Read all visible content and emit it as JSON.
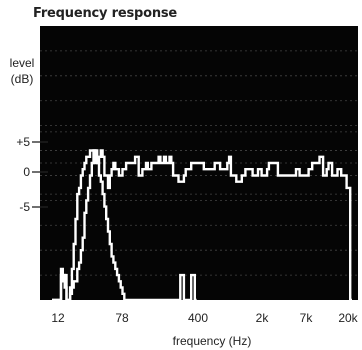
{
  "chart_data": {
    "type": "line",
    "title": "Frequency response",
    "ylabel_lines": [
      "level",
      "(dB)"
    ],
    "xlabel": "frequency (Hz)",
    "x_tick_labels": [
      "12",
      "78",
      "400",
      "2k",
      "7k",
      "20k"
    ],
    "y_tick_labels": [
      "+5",
      "0",
      "-5"
    ],
    "y_tick_values": [
      5,
      0,
      -5
    ],
    "ylim": [
      -22,
      22
    ],
    "xlim": [
      0,
      27
    ],
    "grid": true,
    "background": "#050505",
    "line_color": "#ffffff",
    "series": [
      {
        "values": [
          -22,
          -22,
          -22,
          -22,
          -22,
          -17,
          -19,
          -18,
          -22,
          -22,
          -20,
          -17,
          -13,
          -9,
          -5,
          -4,
          -2,
          -1,
          0,
          1,
          1,
          2,
          2,
          0,
          2,
          0,
          1,
          2,
          1,
          -2,
          -2,
          -4,
          -2,
          -1,
          0,
          -1,
          -1,
          -2,
          -2,
          -1,
          -1,
          0,
          0,
          0,
          0,
          0,
          1,
          1,
          -2,
          -2,
          -1,
          -1,
          0,
          -1,
          -1,
          0,
          0,
          0,
          0,
          1,
          0,
          0,
          1,
          0,
          0,
          1,
          0,
          -2,
          -2,
          -2,
          -3,
          -3,
          -3,
          -2,
          -1,
          -1,
          -1,
          0,
          0,
          0,
          0,
          0,
          0,
          0,
          -1,
          -1,
          -1,
          -1,
          -1,
          -1,
          0,
          0,
          0,
          -1,
          -1,
          -1,
          -1,
          0,
          1,
          -2,
          -2,
          -2,
          -3,
          -3,
          -3,
          -2,
          -2,
          -1,
          -1,
          -1,
          -1,
          -2,
          -2,
          -2,
          -1,
          -1,
          -2,
          -2,
          -2,
          -1,
          0,
          0,
          0,
          0,
          0,
          -2,
          -2,
          -2,
          -2,
          -2,
          -2,
          -2,
          -2,
          -2,
          -2,
          -1,
          -1,
          -2,
          -2,
          -2,
          -2,
          -2,
          -1,
          -1,
          0,
          0,
          0,
          0,
          1,
          1,
          -2,
          -2,
          -1,
          0,
          0,
          -2,
          -2,
          -2,
          -1,
          -1,
          -2,
          -2,
          -2,
          -4,
          -4,
          -22
        ]
      },
      {
        "values": [
          -22,
          -22,
          -22,
          -22,
          -22,
          -18,
          -18,
          -20,
          -22,
          -22,
          -21,
          -20,
          -19,
          -19,
          -17,
          -16,
          -14,
          -12,
          -8,
          -6,
          -4,
          -2,
          0,
          2,
          1,
          0,
          -2,
          -3,
          -5,
          -7,
          -9,
          -11,
          -13,
          -15,
          -16,
          -17,
          -18,
          -19,
          -20,
          -21,
          -22,
          -22,
          -22,
          -22,
          -22,
          -22,
          -22,
          -22,
          -22,
          -22,
          -22,
          -22,
          -22,
          -22,
          -22,
          -22,
          -22,
          -22,
          -22,
          -22,
          -22,
          -22,
          -22,
          -22,
          -22,
          -22,
          -22,
          -22,
          -22,
          -22,
          -22,
          -18,
          -18,
          -22,
          -22,
          -22,
          -22,
          -18,
          -18,
          -22
        ]
      }
    ]
  }
}
